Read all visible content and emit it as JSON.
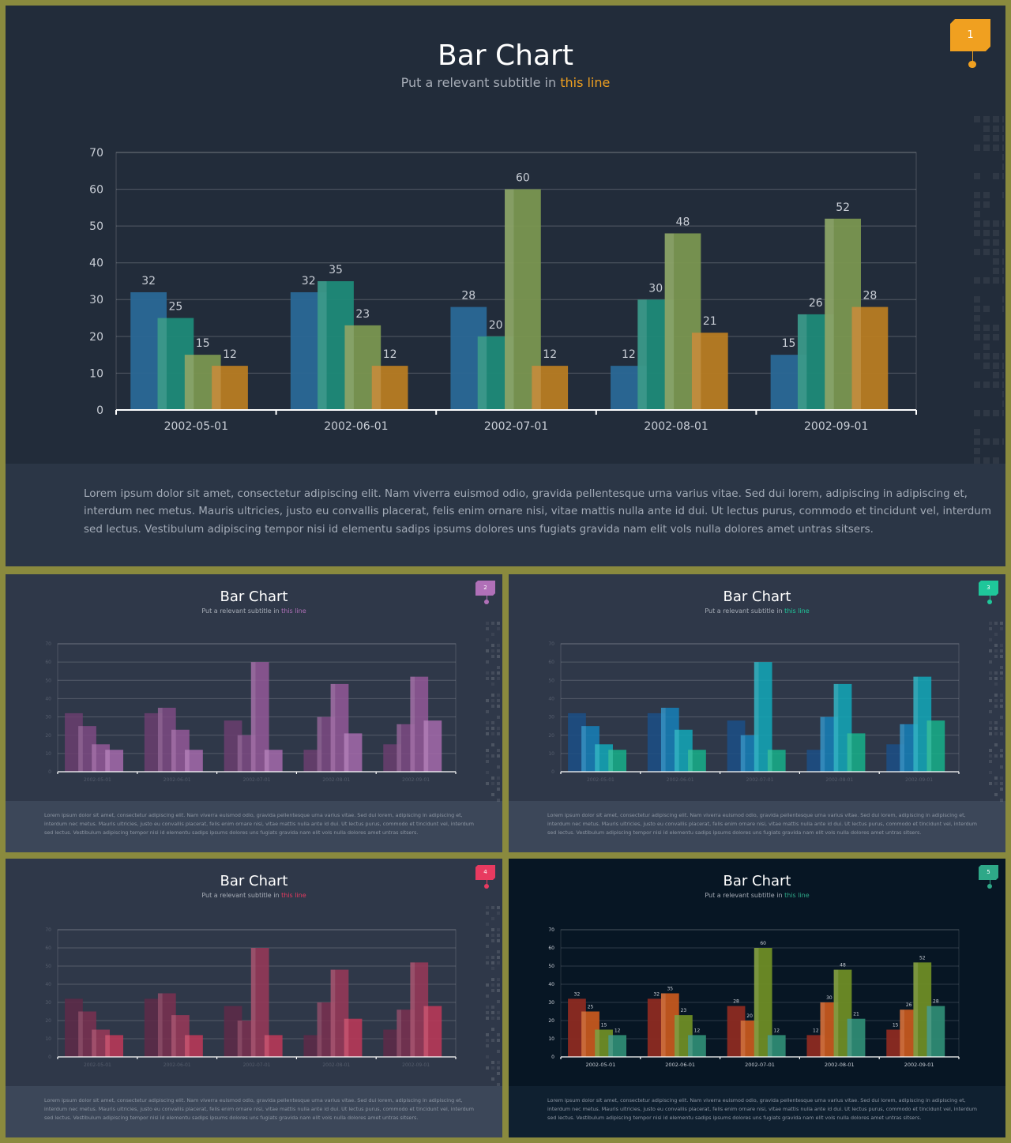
{
  "slides": [
    {
      "title": "Bar Chart",
      "subtitle_prefix": "Put a relevant subtitle in ",
      "subtitle_highlight": "this line",
      "badge": "1",
      "accent": "#f0a020",
      "palette": [
        "#2a6896",
        "#1f8a78",
        "#7a9650",
        "#b87c22"
      ],
      "paragraph": [
        "Lorem ipsum dolor sit amet, consectetur adipiscing elit. Nam viverra euismod odio, gravida pellentesque urna varius vitae. Sed dui lorem, adipiscing in adipiscing et,",
        "interdum nec metus. Mauris ultricies, justo eu convallis placerat, felis enim ornare nisi, vitae mattis nulla ante id dui. Ut lectus purus, commodo et tincidunt vel, interdum",
        "sed lectus. Vestibulum adipiscing tempor nisi id elementu sadips ipsums dolores uns fugiats gravida nam elit vols nulla dolores amet untras sitsers."
      ]
    },
    {
      "title": "Bar Chart",
      "subtitle_prefix": "Put a relevant subtitle in ",
      "subtitle_highlight": "this line",
      "badge": "2",
      "accent": "#b070b8",
      "palette": [
        "#6a3e6e",
        "#7d4a82",
        "#935898",
        "#a56aab"
      ],
      "paragraph": [
        "Lorem ipsum dolor sit amet, consectetur adipiscing elit. Nam viverra euismod odio, gravida pellentesque urna varius vitae. Sed dui lorem, adipiscing in adipiscing et,",
        "interdum nec metus. Mauris ultricies, justo eu convallis placerat, felis enim ornare nisi, vitae mattis nulla ante id dui. Ut lectus purus, commodo et tincidunt vel, interdum",
        "sed lectus. Vestibulum adipiscing tempor nisi id elementu sadips ipsums dolores uns fugiats gravida nam elit vols nulla dolores amet untras sitsers."
      ]
    },
    {
      "title": "Bar Chart",
      "subtitle_prefix": "Put a relevant subtitle in ",
      "subtitle_highlight": "this line",
      "badge": "3",
      "accent": "#1fc79a",
      "palette": [
        "#1b4f86",
        "#1580b8",
        "#12a8b8",
        "#16b08a"
      ],
      "paragraph": [
        "Lorem ipsum dolor sit amet, consectetur adipiscing elit. Nam viverra euismod odio, gravida pellentesque urna varius vitae. Sed dui lorem, adipiscing in adipiscing et,",
        "interdum nec metus. Mauris ultricies, justo eu convallis placerat, felis enim ornare nisi, vitae mattis nulla ante id dui. Ut lectus purus, commodo et tincidunt vel, interdum",
        "sed lectus. Vestibulum adipiscing tempor nisi id elementu sadips ipsums dolores uns fugiats gravida nam elit vols nulla dolores amet untras sitsers."
      ]
    },
    {
      "title": "Bar Chart",
      "subtitle_prefix": "Put a relevant subtitle in ",
      "subtitle_highlight": "this line",
      "badge": "4",
      "accent": "#e83a60",
      "palette": [
        "#5e2a48",
        "#7a3050",
        "#9a3858",
        "#c03858"
      ],
      "paragraph": [
        "Lorem ipsum dolor sit amet, consectetur adipiscing elit. Nam viverra euismod odio, gravida pellentesque urna varius vitae. Sed dui lorem, adipiscing in adipiscing et,",
        "interdum nec metus. Mauris ultricies, justo eu convallis placerat, felis enim ornare nisi, vitae mattis nulla ante id dui. Ut lectus purus, commodo et tincidunt vel, interdum",
        "sed lectus. Vestibulum adipiscing tempor nisi id elementu sadips ipsums dolores uns fugiats gravida nam elit vols nulla dolores amet untras sitsers."
      ]
    },
    {
      "title": "Bar Chart",
      "subtitle_prefix": "Put a relevant subtitle in ",
      "subtitle_highlight": "this line",
      "badge": "5",
      "accent": "#2ea888",
      "palette": [
        "#8c2a22",
        "#c4571f",
        "#6e8c26",
        "#2e8a74"
      ],
      "paragraph": [
        "Lorem ipsum dolor sit amet, consectetur adipiscing elit. Nam viverra euismod odio, gravida pellentesque urna varius vitae. Sed dui lorem, adipiscing in adipiscing et,",
        "interdum nec metus. Mauris ultricies, justo eu convallis placerat, felis enim ornare nisi, vitae mattis nulla ante id dui. Ut lectus purus, commodo et tincidunt vel, interdum",
        "sed lectus. Vestibulum adipiscing tempor nisi id elementu sadips ipsums dolores uns fugiats gravida nam elit vols nulla dolores amet untras sitsers."
      ]
    }
  ],
  "chart_data": {
    "type": "bar",
    "categories": [
      "2002-05-01",
      "2002-06-01",
      "2002-07-01",
      "2002-08-01",
      "2002-09-01"
    ],
    "series": [
      {
        "values": [
          32,
          32,
          28,
          12,
          15
        ]
      },
      {
        "values": [
          25,
          35,
          20,
          30,
          26
        ]
      },
      {
        "values": [
          15,
          23,
          60,
          48,
          52
        ]
      },
      {
        "values": [
          12,
          12,
          12,
          21,
          28
        ]
      }
    ],
    "yticks": [
      0,
      10,
      20,
      30,
      40,
      50,
      60,
      70
    ],
    "ylim": [
      0,
      70
    ],
    "grid": true,
    "data_labels": true
  }
}
